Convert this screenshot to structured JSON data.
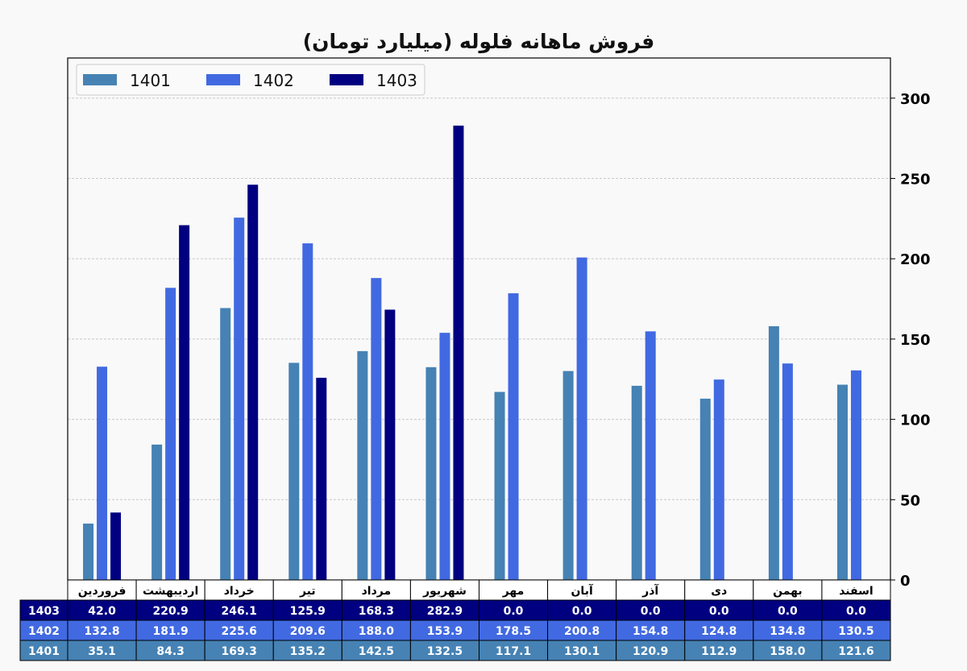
{
  "chart_data": {
    "type": "bar",
    "title": "فروش ماهانه فلوله (میلیارد تومان)",
    "categories": [
      "فروردین",
      "اردیبهشت",
      "خرداد",
      "تیر",
      "مرداد",
      "شهریور",
      "مهر",
      "آبان",
      "آذر",
      "دی",
      "بهمن",
      "اسفند"
    ],
    "series": [
      {
        "name": "1401",
        "color": "#4682b4",
        "values": [
          35.1,
          84.3,
          169.3,
          135.2,
          142.5,
          132.5,
          117.1,
          130.1,
          120.9,
          112.9,
          158.0,
          121.6
        ]
      },
      {
        "name": "1402",
        "color": "#4169e1",
        "values": [
          132.8,
          181.9,
          225.6,
          209.6,
          188.0,
          153.9,
          178.5,
          200.8,
          154.8,
          124.8,
          134.8,
          130.5
        ]
      },
      {
        "name": "1403",
        "color": "#000080",
        "values": [
          42.0,
          220.9,
          246.1,
          125.9,
          168.3,
          282.9,
          0.0,
          0.0,
          0.0,
          0.0,
          0.0,
          0.0
        ]
      }
    ],
    "ylim": [
      0,
      325
    ],
    "yticks": [
      0,
      50,
      100,
      150,
      200,
      250,
      300
    ],
    "y_axis_side": "right",
    "grid": true,
    "legend": "top-left",
    "table_rows": [
      "1403",
      "1402",
      "1401"
    ]
  }
}
